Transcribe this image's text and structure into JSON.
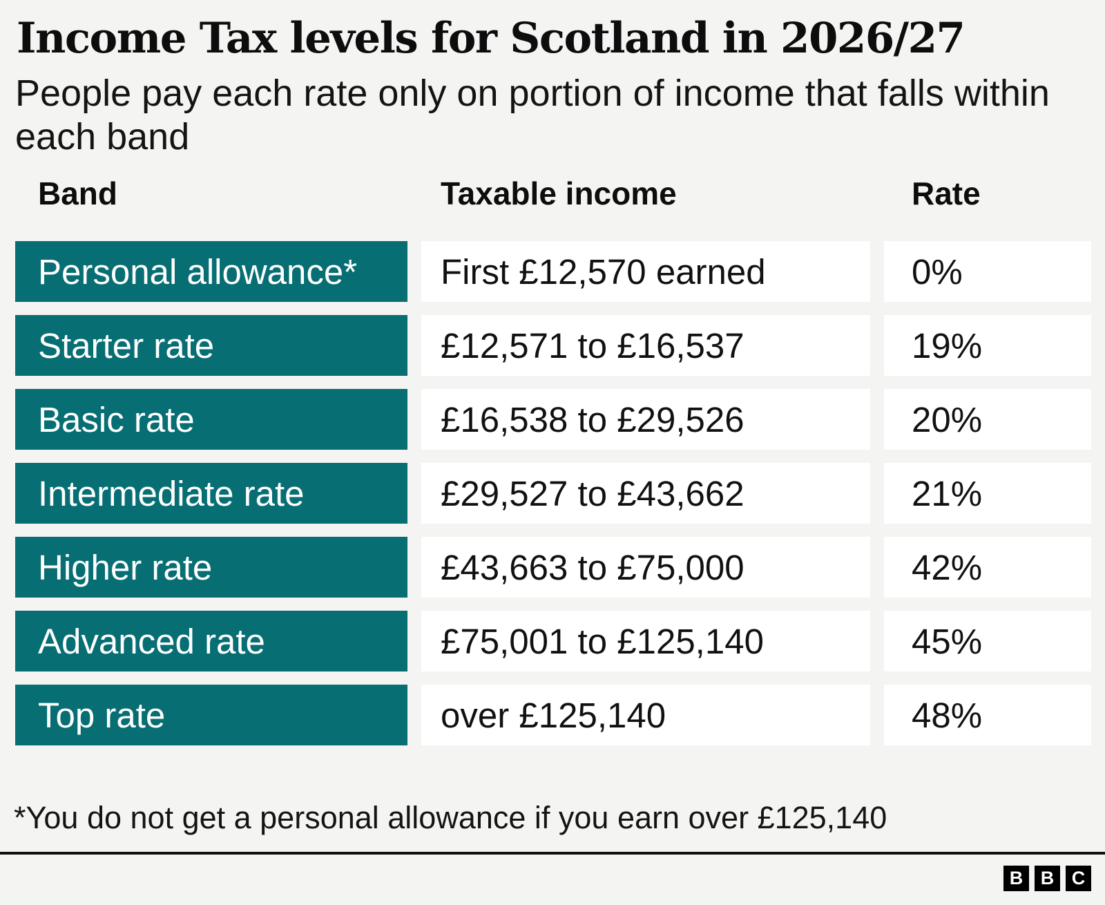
{
  "chart_data": {
    "type": "table",
    "title": "Income Tax levels for Scotland in 2026/27",
    "subtitle": "People pay each rate only on portion of income that falls within\neach band",
    "columns": [
      "Band",
      "Taxable income",
      "Rate"
    ],
    "rows": [
      {
        "band": "Personal allowance*",
        "income": "First £12,570 earned",
        "rate": "0%"
      },
      {
        "band": "Starter rate",
        "income": "£12,571 to £16,537",
        "rate": "19%"
      },
      {
        "band": "Basic rate",
        "income": "£16,538 to £29,526",
        "rate": "20%"
      },
      {
        "band": "Intermediate rate",
        "income": "£29,527 to £43,662",
        "rate": "21%"
      },
      {
        "band": "Higher rate",
        "income": "£43,663 to £75,000",
        "rate": "42%"
      },
      {
        "band": "Advanced rate",
        "income": "£75,001 to £125,140",
        "rate": "45%"
      },
      {
        "band": "Top rate",
        "income": "over £125,140",
        "rate": "48%"
      }
    ],
    "rates_pct": [
      0,
      19,
      20,
      21,
      42,
      45,
      48
    ],
    "footnote": "*You do not get a personal allowance if you earn over £125,140"
  },
  "logo": {
    "letters": [
      "B",
      "B",
      "C"
    ]
  },
  "colors": {
    "page_bg": "#f4f4f2",
    "band_cell_bg": "#076e74",
    "band_cell_text": "#ffffff",
    "value_cell_bg": "#ffffff",
    "text": "#141414",
    "divider": "#101010",
    "logo_bg": "#000000"
  }
}
